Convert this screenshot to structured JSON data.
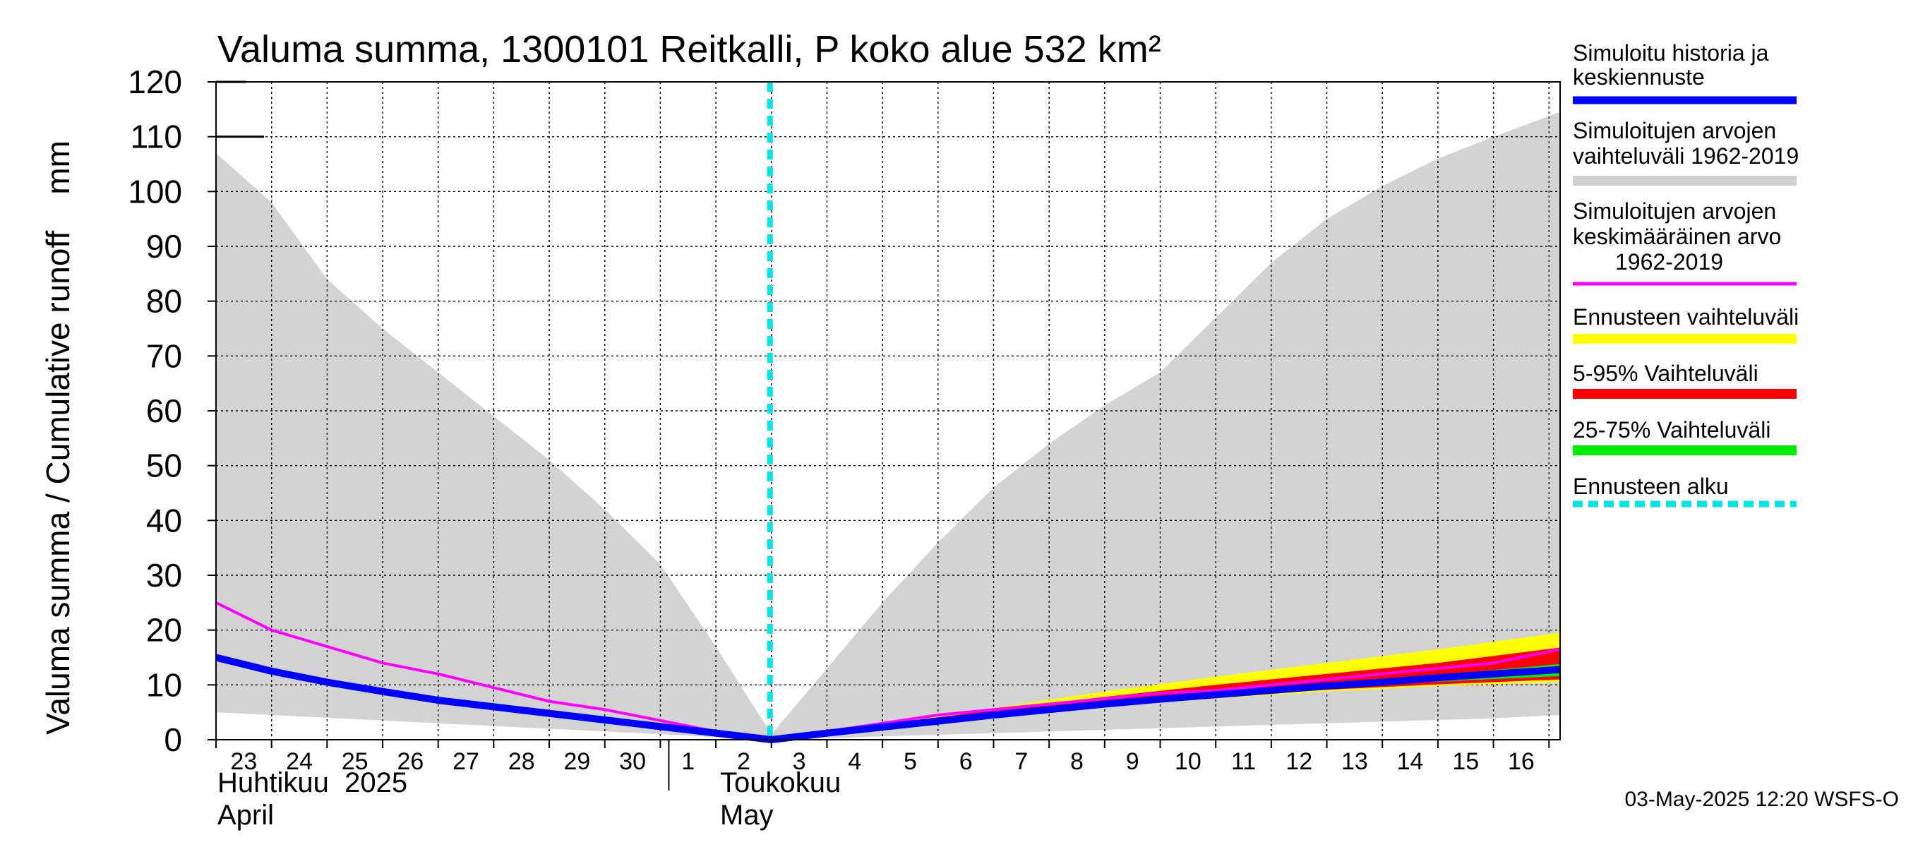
{
  "chart_data": {
    "type": "area",
    "title": "Valuma summa, 1300101 Reitkalli, P koko alue 532 km²",
    "ylabel": "Valuma summa / Cumulative runoff    mm",
    "ylim": [
      0,
      120
    ],
    "yticks": [
      0,
      10,
      20,
      30,
      40,
      50,
      60,
      70,
      80,
      90,
      100,
      110,
      120
    ],
    "x_range": [
      0,
      24.2
    ],
    "x_days": [
      "23",
      "24",
      "25",
      "26",
      "27",
      "28",
      "29",
      "30",
      "1",
      "2",
      "3",
      "4",
      "5",
      "6",
      "7",
      "8",
      "9",
      "10",
      "11",
      "12",
      "13",
      "14",
      "15",
      "16"
    ],
    "month_labels": {
      "april_fi": "Huhtikuu  2025",
      "april_en": "April",
      "may_fi": "Toukokuu",
      "may_en": "May"
    },
    "forecast_start_x": 10.0,
    "historical_range": {
      "x": [
        0,
        1,
        2,
        3,
        4,
        5,
        6,
        7,
        8,
        9,
        10,
        11,
        12,
        13,
        14,
        15,
        16,
        17,
        18,
        19,
        20,
        21,
        22,
        23,
        24.2
      ],
      "upper": [
        107,
        98,
        84,
        75,
        67,
        59,
        51,
        42,
        32,
        17,
        1,
        13,
        25,
        36,
        46,
        54,
        61,
        67,
        77,
        87,
        95,
        101,
        106,
        110,
        114.5
      ],
      "lower": [
        5,
        4.5,
        4,
        3.5,
        3,
        2.5,
        2,
        1.5,
        1,
        0.5,
        0,
        0.3,
        0.6,
        0.9,
        1.2,
        1.5,
        1.8,
        2.1,
        2.4,
        2.7,
        3,
        3.3,
        3.6,
        3.9,
        4.5
      ]
    },
    "series": [
      {
        "name": "Ennusteen vaihteluväli",
        "color": "#ffff00",
        "kind": "band",
        "x": [
          10,
          12,
          14,
          16,
          18,
          20,
          22,
          24.2
        ],
        "upper": [
          0.2,
          3,
          5.8,
          8.8,
          11.5,
          14,
          16.5,
          19.5
        ],
        "lower": [
          0,
          2.2,
          4.2,
          6,
          7.5,
          8.8,
          9.8,
          10.5
        ]
      },
      {
        "name": "5-95% Vaihteluväli",
        "color": "#ff0000",
        "kind": "band",
        "x": [
          10,
          12,
          14,
          16,
          18,
          20,
          22,
          24.2
        ],
        "upper": [
          0.1,
          2.8,
          5.4,
          7.8,
          10,
          12,
          14,
          16.8
        ],
        "lower": [
          0,
          2.3,
          4.4,
          6.3,
          7.8,
          9.1,
          10.1,
          11
        ]
      },
      {
        "name": "25-75% Vaihteluväli",
        "color": "#00ee00",
        "kind": "band",
        "x": [
          10,
          12,
          14,
          16,
          18,
          20,
          22,
          24.2
        ],
        "upper": [
          0.1,
          2.5,
          4.8,
          6.8,
          8.6,
          10.2,
          11.8,
          13.8
        ],
        "lower": [
          0,
          2.4,
          4.5,
          6.4,
          8.0,
          9.4,
          10.6,
          11.6
        ]
      },
      {
        "name": "Simuloitujen arvojen keskimääräinen arvo 1962-2019",
        "color": "#ff00ff",
        "kind": "line",
        "x": [
          0,
          1,
          2,
          3,
          4,
          5,
          6,
          7,
          8,
          9,
          10,
          11,
          12,
          13,
          14,
          15,
          16,
          17,
          18,
          19,
          20,
          21,
          22,
          23,
          24.2
        ],
        "values": [
          25,
          20,
          17,
          14,
          12,
          9.5,
          7,
          5.5,
          3.5,
          1.5,
          0,
          1.5,
          3,
          4.5,
          5.5,
          6.5,
          7.5,
          8.5,
          9,
          10,
          11,
          12,
          13,
          14,
          16.5
        ]
      },
      {
        "name": "Simuloitu historia ja keskiennuste",
        "color": "#0000ff",
        "kind": "line",
        "x": [
          0,
          1,
          2,
          3,
          4,
          5,
          6,
          7,
          8,
          9,
          10,
          11,
          12,
          13,
          14,
          15,
          16,
          17,
          18,
          19,
          20,
          21,
          22,
          23,
          24.2
        ],
        "values": [
          15,
          12.5,
          10.5,
          8.8,
          7.2,
          6,
          4.8,
          3.6,
          2.4,
          1.2,
          0,
          1.2,
          2.3,
          3.4,
          4.5,
          5.5,
          6.5,
          7.4,
          8.2,
          9,
          9.8,
          10.5,
          11.3,
          12,
          12.8
        ]
      }
    ]
  },
  "legend": {
    "items": [
      {
        "line1": "Simuloitu historia ja",
        "line2": "keskiennuste",
        "line3": "",
        "color": "#0000ff",
        "dashed": false
      },
      {
        "line1": "Simuloitujen arvojen",
        "line2": "vaihteluväli 1962-2019",
        "line3": "",
        "color": "#d0d0d0",
        "dashed": false
      },
      {
        "line1": "Simuloitujen arvojen",
        "line2": "keskimääräinen arvo",
        "line3": "1962-2019",
        "color": "#ff00ff",
        "dashed": false
      },
      {
        "line1": "Ennusteen vaihteluväli",
        "line2": "",
        "line3": "",
        "color": "#ffff00",
        "dashed": false
      },
      {
        "line1": "5-95% Vaihteluväli",
        "line2": "",
        "line3": "",
        "color": "#ff0000",
        "dashed": false
      },
      {
        "line1": "25-75% Vaihteluväli",
        "line2": "",
        "line3": "",
        "color": "#00ee00",
        "dashed": false
      },
      {
        "line1": "Ennusteen alku",
        "line2": "",
        "line3": "",
        "color": "#00e5e5",
        "dashed": true
      }
    ]
  },
  "footer": "03-May-2025 12:20 WSFS-O",
  "colors": {
    "historical_band": "#d3d3d3",
    "forecast_start": "#00e5e5",
    "grid": "#000000"
  }
}
